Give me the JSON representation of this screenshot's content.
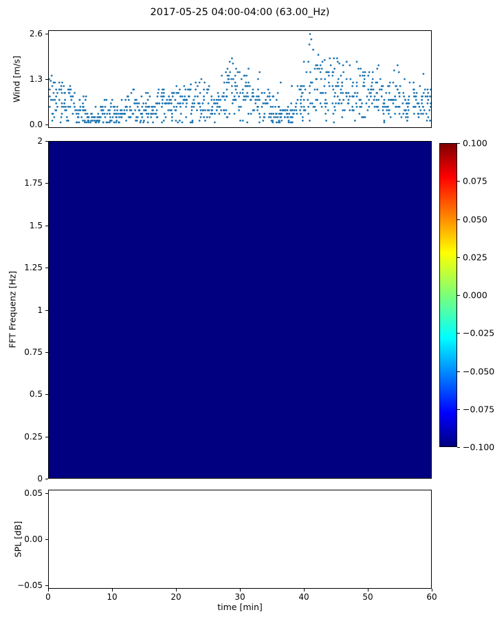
{
  "title": "2017-05-25 04:00-04:00 (63.00_Hz)",
  "colors": {
    "marker": "#1f77b4",
    "heatmap_fill": "#000080",
    "axis": "#000000",
    "background": "#ffffff"
  },
  "wind_plot": {
    "ylabel": "Wind [m/s]",
    "ytick_values": [
      2.6,
      1.3,
      0.0
    ],
    "ytick_labels": [
      "2.6",
      "1.3",
      "0.0"
    ]
  },
  "spectrogram": {
    "ylabel": "FFT Frequenz [Hz]",
    "ytick_values": [
      2,
      1.75,
      1.5,
      1.25,
      1,
      0.75,
      0.5,
      0.25,
      0
    ],
    "ytick_labels": [
      "2",
      "1.75",
      "1.5",
      "1.25",
      "1",
      "0.75",
      "0.5",
      "0.25",
      "0"
    ]
  },
  "colorbar": {
    "tick_values": [
      0.1,
      0.075,
      0.05,
      0.025,
      0,
      -0.025,
      -0.05,
      -0.075,
      -0.1
    ],
    "tick_labels": [
      "0.100",
      "0.075",
      "0.050",
      "0.025",
      "0.000",
      "−0.025",
      "−0.050",
      "−0.075",
      "−0.100"
    ],
    "gradient_stops": [
      "#000080 0%",
      "#0000ff 11%",
      "#00ffff 36%",
      "#7cff79 50%",
      "#ffff00 64%",
      "#ff0000 89%",
      "#800000 100%"
    ]
  },
  "spl_plot": {
    "ylabel": "SPL [dB]",
    "ytick_values": [
      0.05,
      0.0,
      -0.05
    ],
    "ytick_labels": [
      "0.05",
      "0.00",
      "−0.05"
    ],
    "xlabel": "time [min]",
    "xtick_values": [
      0,
      10,
      20,
      30,
      40,
      50,
      60
    ],
    "xtick_labels": [
      "0",
      "10",
      "20",
      "30",
      "40",
      "50",
      "60"
    ]
  },
  "chart_data": [
    {
      "type": "scatter",
      "title": "2017-05-25 04:00-04:00 (63.00_Hz)",
      "ylabel": "Wind [m/s]",
      "xlabel": "",
      "xlim": [
        0,
        60
      ],
      "ylim": [
        -0.09,
        2.69
      ],
      "yticks": [
        0.0,
        1.3,
        2.6
      ],
      "marker_color": "#1f77b4",
      "value_quantization": 0.1,
      "points_per_minute": 16,
      "mean_wind_by_minute": [
        0.85,
        0.7,
        0.55,
        0.6,
        0.5,
        0.35,
        0.15,
        0.15,
        0.3,
        0.35,
        0.2,
        0.25,
        0.45,
        0.5,
        0.4,
        0.45,
        0.35,
        0.5,
        0.55,
        0.5,
        0.55,
        0.6,
        0.55,
        0.6,
        0.6,
        0.55,
        0.65,
        0.8,
        1.0,
        0.9,
        0.8,
        0.9,
        0.7,
        0.65,
        0.55,
        0.4,
        0.25,
        0.3,
        0.5,
        0.6,
        1.0,
        1.3,
        1.1,
        1.0,
        1.0,
        1.0,
        0.95,
        1.0,
        0.85,
        0.9,
        0.75,
        0.8,
        0.7,
        0.6,
        0.8,
        0.6,
        0.55,
        0.7,
        0.6,
        0.7,
        0.6
      ],
      "spikes": [
        [
          41.0,
          2.6
        ],
        [
          41.2,
          2.45
        ],
        [
          40.9,
          2.3
        ],
        [
          41.5,
          2.15
        ],
        [
          42.3,
          2.0
        ],
        [
          44.1,
          1.9
        ],
        [
          43.3,
          1.85
        ],
        [
          45.6,
          1.75
        ],
        [
          46.2,
          1.7
        ],
        [
          48.6,
          1.6
        ],
        [
          28.4,
          1.8
        ],
        [
          28.9,
          1.75
        ],
        [
          29.4,
          1.6
        ],
        [
          27.8,
          1.5
        ],
        [
          33.1,
          1.5
        ],
        [
          50.3,
          1.5
        ],
        [
          54.2,
          1.55
        ],
        [
          58.8,
          1.45
        ],
        [
          36.4,
          1.2
        ],
        [
          22.3,
          1.15
        ],
        [
          0.3,
          1.25
        ],
        [
          2.1,
          1.2
        ]
      ]
    },
    {
      "type": "heatmap",
      "ylabel": "FFT Frequenz [Hz]",
      "xlim": [
        0,
        60
      ],
      "ylim": [
        0,
        2
      ],
      "uniform_value": -0.1,
      "clim": [
        -0.1,
        0.1
      ],
      "colormap": "jet",
      "colorbar_ticks": [
        0.1,
        0.075,
        0.05,
        0.025,
        0,
        -0.025,
        -0.05,
        -0.075,
        -0.1
      ]
    },
    {
      "type": "line",
      "ylabel": "SPL [dB]",
      "xlabel": "time [min]",
      "xlim": [
        0,
        60
      ],
      "ylim": [
        -0.05,
        0.05
      ],
      "xticks": [
        0,
        10,
        20,
        30,
        40,
        50,
        60
      ],
      "series": []
    }
  ]
}
